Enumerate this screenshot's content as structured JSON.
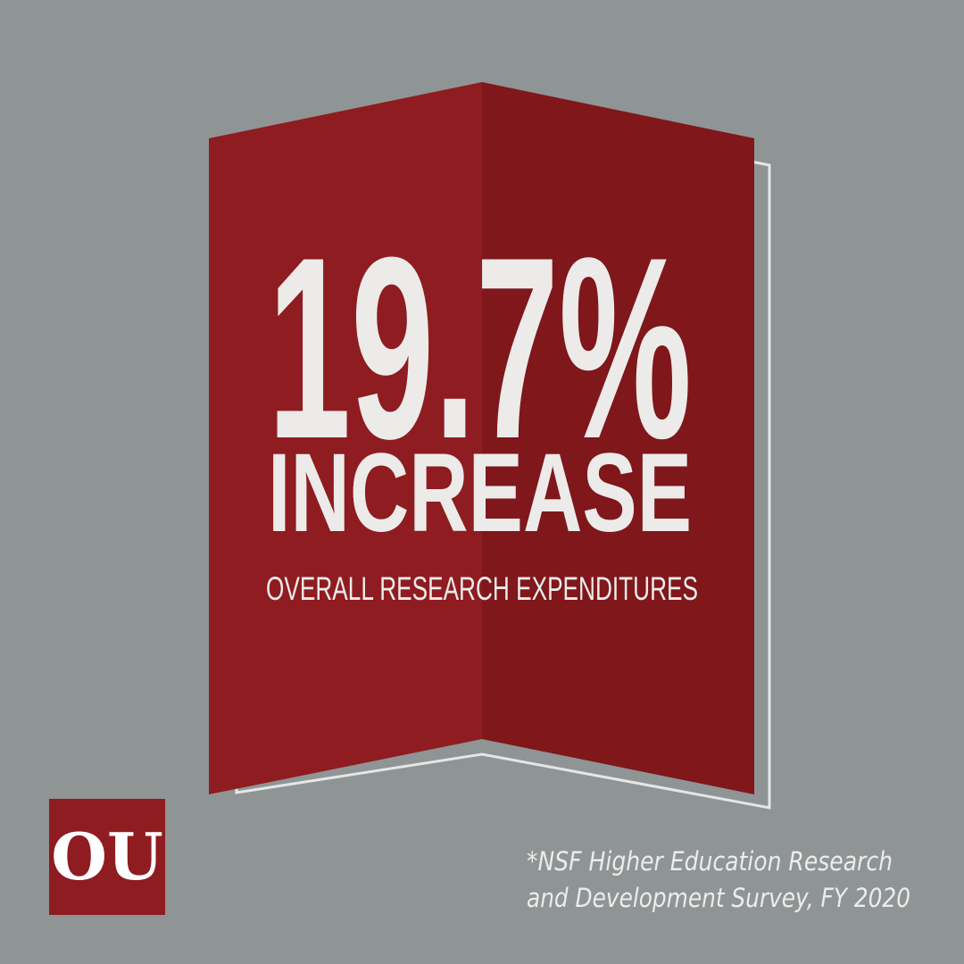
{
  "headline": {
    "figure": "19.7%",
    "word": "INCREASE",
    "subtitle": "OVERALL RESEARCH EXPENDITURES"
  },
  "footnote": {
    "lines": [
      "*NSF Higher Education Research",
      "and Development Survey, FY 2020"
    ]
  },
  "logo": {
    "text": "OU"
  }
}
